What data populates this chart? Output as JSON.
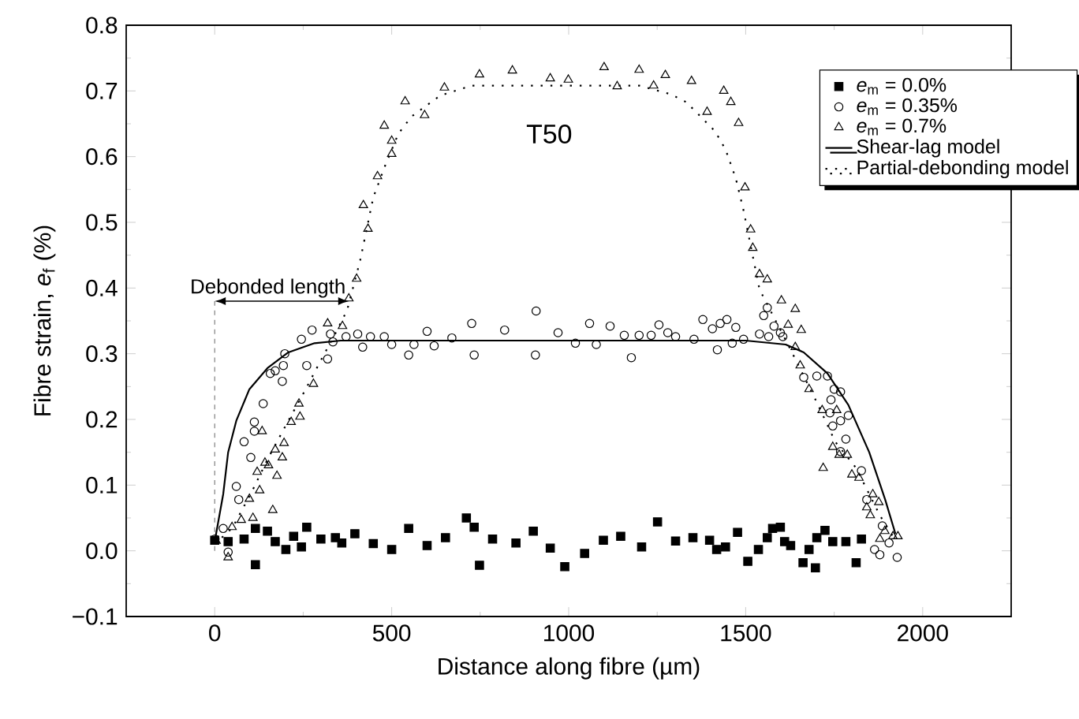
{
  "chart_data": {
    "type": "scatter",
    "xlabel": "Distance along fibre (µm)",
    "ylabel": "Fibre strain, *e*$_{f}$ (%)",
    "xlim": [
      -250,
      2250
    ],
    "ylim": [
      -0.1,
      0.8
    ],
    "xticks": [
      0,
      500,
      1000,
      1500,
      2000
    ],
    "yticks": [
      {
        "value": -0.1,
        "label": "−0.1"
      },
      {
        "value": 0,
        "label": "0.0"
      },
      {
        "value": 0.1,
        "label": "0.1"
      },
      {
        "value": 0.2,
        "label": "0.2"
      },
      {
        "value": 0.3,
        "label": "0.3"
      },
      {
        "value": 0.4,
        "label": "0.4"
      },
      {
        "value": 0.5,
        "label": "0.5"
      },
      {
        "value": 0.6,
        "label": "0.6"
      },
      {
        "value": 0.7,
        "label": "0.7"
      },
      {
        "value": 0.8,
        "label": "0.8"
      }
    ],
    "legend": "top right",
    "annotations": [
      "T50",
      {
        "text": "Debonded length",
        "x": 380,
        "y": 0.38
      }
    ],
    "series": [
      {
        "name": "*e*$_{m}$ = 0.0%",
        "marker": "square",
        "color": "#000000",
        "x": [
          0,
          38,
          83,
          115,
          115,
          149,
          171,
          201,
          223,
          245,
          260,
          300,
          341,
          359,
          396,
          448,
          500,
          548,
          600,
          652,
          711,
          733,
          748,
          785,
          851,
          900,
          948,
          989,
          1045,
          1098,
          1147,
          1206,
          1251,
          1302,
          1351,
          1398,
          1418,
          1443,
          1477,
          1506,
          1536,
          1561,
          1576,
          1598,
          1610,
          1627,
          1662,
          1679,
          1697,
          1701,
          1724,
          1746,
          1783,
          1812,
          1827
        ],
        "values": [
          0.016,
          0.014,
          0.018,
          0.034,
          -0.021,
          0.03,
          0.014,
          0.002,
          0.022,
          0.006,
          0.036,
          0.018,
          0.02,
          0.012,
          0.026,
          0.011,
          0.002,
          0.034,
          0.008,
          0.02,
          0.05,
          0.036,
          -0.022,
          0.018,
          0.012,
          0.03,
          0.004,
          -0.024,
          -0.004,
          0.016,
          0.022,
          0.006,
          0.044,
          0.015,
          0.02,
          0.016,
          0.002,
          0.006,
          0.028,
          -0.016,
          0.002,
          0.02,
          0.034,
          0.036,
          0.014,
          0.008,
          -0.018,
          0.002,
          -0.026,
          0.02,
          0.031,
          0.014,
          0.014,
          -0.018,
          0.018
        ]
      },
      {
        "name": "*e*$_{m}$ = 0.35%",
        "marker": "circle",
        "color": "#000000",
        "x": [
          1,
          24,
          38,
          61,
          68,
          83,
          102,
          112,
          112,
          137,
          157,
          171,
          191,
          194,
          198,
          245,
          260,
          275,
          319,
          327,
          334,
          371,
          404,
          418,
          440,
          479,
          500,
          548,
          563,
          600,
          620,
          670,
          726,
          733,
          819,
          906,
          908,
          970,
          1019,
          1059,
          1078,
          1117,
          1157,
          1177,
          1199,
          1233,
          1255,
          1280,
          1302,
          1354,
          1379,
          1406,
          1420,
          1428,
          1447,
          1462,
          1472,
          1494,
          1539,
          1551,
          1561,
          1565,
          1580,
          1598,
          1605,
          1664,
          1701,
          1731,
          1738,
          1741,
          1746,
          1750,
          1768,
          1768,
          1768,
          1783,
          1790,
          1827,
          1842,
          1864,
          1879,
          1886,
          1905,
          1928
        ],
        "values": [
          0.018,
          0.034,
          -0.002,
          0.098,
          0.078,
          0.166,
          0.142,
          0.196,
          0.182,
          0.224,
          0.27,
          0.274,
          0.258,
          0.282,
          0.3,
          0.322,
          0.282,
          0.336,
          0.292,
          0.33,
          0.318,
          0.326,
          0.33,
          0.31,
          0.326,
          0.326,
          0.314,
          0.298,
          0.314,
          0.334,
          0.312,
          0.324,
          0.346,
          0.298,
          0.336,
          0.298,
          0.365,
          0.332,
          0.316,
          0.346,
          0.314,
          0.342,
          0.328,
          0.294,
          0.328,
          0.328,
          0.344,
          0.332,
          0.326,
          0.322,
          0.352,
          0.338,
          0.306,
          0.346,
          0.352,
          0.316,
          0.34,
          0.322,
          0.33,
          0.358,
          0.37,
          0.326,
          0.342,
          0.332,
          0.326,
          0.264,
          0.266,
          0.266,
          0.21,
          0.23,
          0.19,
          0.246,
          0.242,
          0.198,
          0.151,
          0.17,
          0.206,
          0.122,
          0.078,
          0.002,
          -0.006,
          0.038,
          0.012,
          -0.01
        ]
      },
      {
        "name": "*e*$_{m}$ = 0.7%",
        "marker": "triangle",
        "color": "#000000",
        "x": [
          4,
          38,
          49,
          75,
          98,
          108,
          120,
          127,
          134,
          142,
          152,
          164,
          171,
          176,
          191,
          196,
          216,
          238,
          241,
          279,
          319,
          361,
          379,
          401,
          420,
          433,
          460,
          479,
          500,
          500,
          538,
          593,
          649,
          748,
          841,
          948,
          999,
          1100,
          1137,
          1199,
          1240,
          1273,
          1347,
          1391,
          1438,
          1458,
          1480,
          1498,
          1514,
          1520,
          1539,
          1561,
          1601,
          1620,
          1640,
          1640,
          1654,
          1657,
          1679,
          1716,
          1719,
          1746,
          1757,
          1764,
          1787,
          1800,
          1820,
          1842,
          1852,
          1859,
          1876,
          1879,
          1893,
          1916,
          1930
        ],
        "values": [
          0.015,
          -0.01,
          0.036,
          0.047,
          0.079,
          0.05,
          0.12,
          0.092,
          0.182,
          0.134,
          0.13,
          0.062,
          0.154,
          0.114,
          0.142,
          0.164,
          0.196,
          0.224,
          0.204,
          0.254,
          0.346,
          0.342,
          0.384,
          0.414,
          0.526,
          0.49,
          0.57,
          0.647,
          0.604,
          0.624,
          0.684,
          0.663,
          0.705,
          0.725,
          0.731,
          0.719,
          0.717,
          0.736,
          0.707,
          0.732,
          0.708,
          0.724,
          0.715,
          0.668,
          0.7,
          0.683,
          0.651,
          0.553,
          0.489,
          0.461,
          0.421,
          0.413,
          0.381,
          0.344,
          0.368,
          0.31,
          0.282,
          0.336,
          0.246,
          0.214,
          0.126,
          0.158,
          0.214,
          0.146,
          0.146,
          0.116,
          0.111,
          0.066,
          0.054,
          0.086,
          0.074,
          0.018,
          0.03,
          0.022,
          0.022
        ]
      },
      {
        "name": "Shear-lag model",
        "type": "line",
        "line_style": "solid",
        "color": "#000000",
        "x": [
          0,
          24,
          38,
          61,
          98,
          149,
          208,
          282,
          356,
          500,
          1000,
          1500,
          1613,
          1664,
          1731,
          1790,
          1849,
          1894,
          1923
        ],
        "values": [
          0.014,
          0.086,
          0.15,
          0.198,
          0.246,
          0.278,
          0.302,
          0.316,
          0.32,
          0.32,
          0.32,
          0.32,
          0.314,
          0.302,
          0.27,
          0.222,
          0.15,
          0.078,
          0.026
        ]
      },
      {
        "name": "Partial-debonding model",
        "type": "line",
        "line_style": "dotted",
        "color": "#000000",
        "x": [
          0,
          50,
          105,
          150,
          200,
          253,
          300,
          340,
          374,
          411,
          448,
          482,
          519,
          556,
          637,
          726,
          1000,
          1200,
          1288,
          1332,
          1413,
          1443,
          1472,
          1494,
          1521,
          1539,
          1627,
          1701,
          1753,
          1812,
          1879,
          1916
        ],
        "values": [
          0.01,
          0.035,
          0.09,
          0.14,
          0.19,
          0.242,
          0.29,
          0.33,
          0.366,
          0.442,
          0.538,
          0.587,
          0.635,
          0.661,
          0.693,
          0.708,
          0.708,
          0.708,
          0.695,
          0.683,
          0.639,
          0.611,
          0.567,
          0.518,
          0.446,
          0.398,
          0.306,
          0.226,
          0.166,
          0.126,
          0.054,
          0.022
        ]
      }
    ]
  }
}
